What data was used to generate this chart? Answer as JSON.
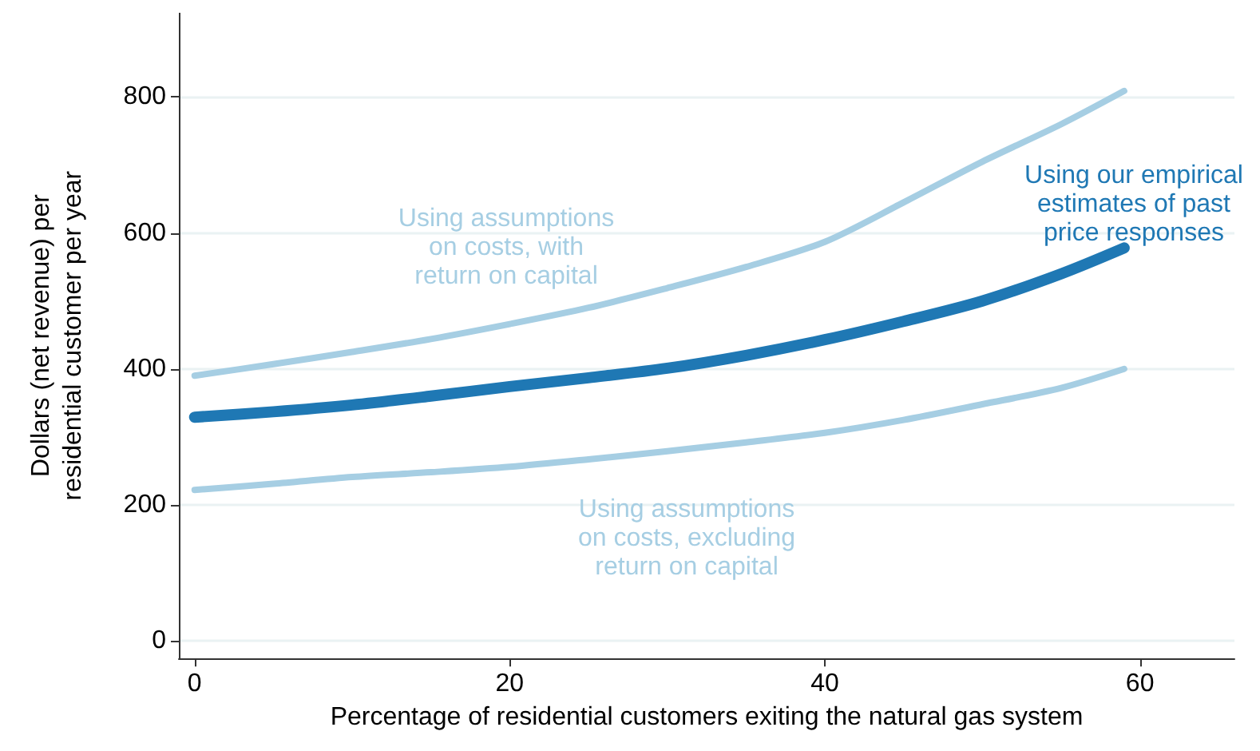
{
  "chart_data": {
    "type": "line",
    "xlabel": "Percentage of residential customers exiting the natural gas system",
    "ylabel": "Dollars (net revenue) per\nresidential customer per year",
    "x": [
      0,
      5,
      10,
      15,
      20,
      25,
      30,
      35,
      40,
      45,
      50,
      55,
      59
    ],
    "series": [
      {
        "color": "#a6cee3",
        "values": [
          390,
          407,
          425,
          444,
          466,
          490,
          519,
          550,
          587,
          645,
          705,
          760,
          809
        ]
      },
      {
        "color": "#a6cee3",
        "values": [
          222,
          231,
          241,
          248,
          256,
          267,
          279,
          292,
          306,
          325,
          348,
          372,
          400
        ]
      },
      {
        "color": "#1f78b4",
        "values": [
          329,
          337,
          347,
          360,
          374,
          387,
          401,
          420,
          443,
          470,
          500,
          540,
          578
        ]
      }
    ],
    "annotations": [
      "Using assumptions\non costs, with\nreturn on capital",
      "Using assumptions\non costs, excluding\nreturn on capital",
      "Using our empirical\nestimates of past\nprice responses"
    ],
    "xlim": [
      -1,
      66
    ],
    "xticks": [
      0,
      20,
      40,
      60
    ],
    "ylim": [
      -26,
      924
    ],
    "yticks": [
      0,
      200,
      400,
      600,
      800
    ],
    "grid": "y",
    "marker": "none",
    "line_style": "solid"
  }
}
